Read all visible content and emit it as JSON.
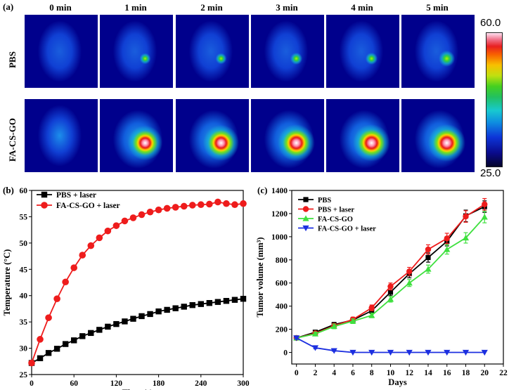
{
  "panel_a": {
    "label": "(a)",
    "columns": [
      "0 min",
      "1 min",
      "2 min",
      "3 min",
      "4 min",
      "5 min"
    ],
    "rows": [
      "PBS",
      "FA-CS-GO"
    ],
    "heat": [
      [
        0,
        0.55,
        0.55,
        0.6,
        0.6,
        0.8
      ],
      [
        0,
        1.6,
        1.75,
        1.9,
        1.9,
        1.95
      ]
    ],
    "colorbar": {
      "max_label": "60.0",
      "min_label": "25.0"
    }
  },
  "chart_data": [
    {
      "panel_label": "(b)",
      "type": "line",
      "xlabel": "Time (s)",
      "ylabel": "Temperature (°C)",
      "xlim": [
        0,
        300
      ],
      "ylim": [
        25,
        60
      ],
      "xticks": [
        0,
        60,
        120,
        180,
        240,
        300
      ],
      "yticks": [
        25,
        30,
        35,
        40,
        45,
        50,
        55,
        60
      ],
      "series": [
        {
          "name": "PBS + laser",
          "color": "#000000",
          "marker": "square",
          "x": [
            0,
            12,
            24,
            36,
            48,
            60,
            72,
            84,
            96,
            108,
            120,
            132,
            144,
            156,
            168,
            180,
            192,
            204,
            216,
            228,
            240,
            252,
            264,
            276,
            288,
            300
          ],
          "y": [
            27.2,
            28.1,
            29.1,
            29.9,
            30.8,
            31.5,
            32.3,
            32.9,
            33.5,
            34.1,
            34.6,
            35.1,
            35.6,
            36.1,
            36.5,
            37.0,
            37.3,
            37.6,
            37.9,
            38.2,
            38.4,
            38.6,
            38.8,
            39.0,
            39.2,
            39.4
          ]
        },
        {
          "name": "FA-CS-GO + laser",
          "color": "#ee1c1c",
          "marker": "circle",
          "x": [
            0,
            12,
            24,
            36,
            48,
            60,
            72,
            84,
            96,
            108,
            120,
            132,
            144,
            156,
            168,
            180,
            192,
            204,
            216,
            228,
            240,
            252,
            264,
            276,
            288,
            300
          ],
          "y": [
            27.2,
            31.7,
            35.8,
            39.4,
            42.6,
            45.3,
            47.7,
            49.5,
            51.0,
            52.3,
            53.3,
            54.2,
            54.8,
            55.4,
            55.9,
            56.3,
            56.6,
            56.8,
            57.0,
            57.2,
            57.3,
            57.4,
            57.8,
            57.5,
            57.3,
            57.5
          ]
        }
      ]
    },
    {
      "panel_label": "(c)",
      "type": "line",
      "xlabel": "Days",
      "ylabel": "Tumor volume (mm³)",
      "xlim": [
        -0.5,
        22
      ],
      "ylim": [
        -100,
        1400
      ],
      "xticks": [
        0,
        2,
        4,
        6,
        8,
        10,
        12,
        14,
        16,
        18,
        20,
        22
      ],
      "yticks": [
        0,
        200,
        400,
        600,
        800,
        1000,
        1200,
        1400
      ],
      "series": [
        {
          "name": "PBS",
          "color": "#000000",
          "marker": "square",
          "x": [
            0,
            2,
            4,
            6,
            8,
            10,
            12,
            14,
            16,
            18,
            20
          ],
          "y": [
            125,
            175,
            240,
            280,
            360,
            520,
            680,
            820,
            960,
            1180,
            1260
          ],
          "err": [
            15,
            15,
            20,
            20,
            25,
            30,
            35,
            40,
            40,
            50,
            50
          ]
        },
        {
          "name": "PBS + laser",
          "color": "#ee1c1c",
          "marker": "circle",
          "x": [
            0,
            2,
            4,
            6,
            8,
            10,
            12,
            14,
            16,
            18,
            20
          ],
          "y": [
            125,
            165,
            230,
            285,
            385,
            570,
            700,
            890,
            985,
            1175,
            1280
          ],
          "err": [
            15,
            15,
            20,
            20,
            25,
            30,
            35,
            40,
            45,
            50,
            50
          ]
        },
        {
          "name": "FA-CS-GO",
          "color": "#3fe03f",
          "marker": "triangle-up",
          "x": [
            0,
            2,
            4,
            6,
            8,
            10,
            12,
            14,
            16,
            18,
            20
          ],
          "y": [
            125,
            160,
            225,
            270,
            320,
            460,
            600,
            720,
            890,
            990,
            1170
          ],
          "err": [
            15,
            15,
            20,
            20,
            20,
            25,
            30,
            35,
            40,
            45,
            50
          ]
        },
        {
          "name": "FA-CS-GO + laser",
          "color": "#1c2fe0",
          "marker": "triangle-down",
          "x": [
            0,
            2,
            4,
            6,
            8,
            10,
            12,
            14,
            16,
            18,
            20
          ],
          "y": [
            125,
            40,
            15,
            0,
            0,
            0,
            0,
            0,
            0,
            0,
            0
          ],
          "err": [
            10,
            8,
            5,
            0,
            0,
            0,
            0,
            0,
            0,
            0,
            0
          ]
        }
      ]
    }
  ]
}
